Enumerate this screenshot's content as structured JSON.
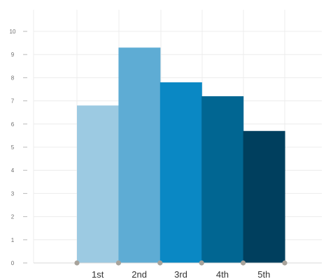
{
  "chart_data": {
    "type": "bar",
    "title": "",
    "xlabel": "",
    "ylabel": "",
    "categories": [
      "1st",
      "2nd",
      "3rd",
      "4th",
      "5th"
    ],
    "values": [
      6.8,
      9.3,
      7.8,
      7.2,
      5.7
    ],
    "bar_colors": [
      "#9ccae2",
      "#5eacd4",
      "#0a88c4",
      "#016692",
      "#003f5e"
    ],
    "ylim": [
      0,
      10
    ],
    "yticks": [
      0,
      1,
      2,
      3,
      4,
      5,
      6,
      7,
      8,
      9,
      10
    ],
    "grid": true,
    "legend": "none"
  }
}
